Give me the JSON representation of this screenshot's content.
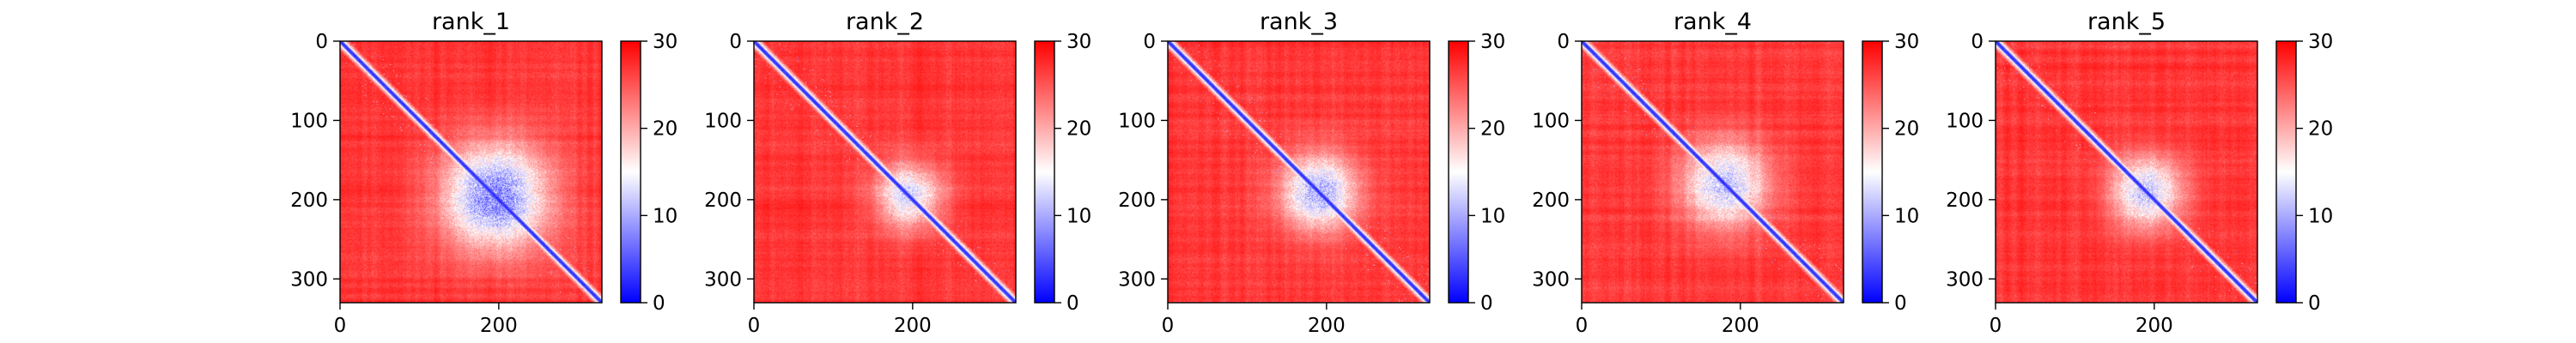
{
  "chart_data": {
    "type": "heatmap",
    "colormap": {
      "name": "bwr",
      "vmin": 0,
      "vmax": 30,
      "colors": [
        "#0000ff",
        "#ffffff",
        "#ff0000"
      ],
      "colorbar_ticks": [
        0,
        10,
        20,
        30
      ],
      "colorbar_tick_labels": [
        "0",
        "10",
        "20",
        "30"
      ]
    },
    "matrix_size": 330,
    "x_ticks": [
      0,
      200
    ],
    "x_tick_labels": [
      "0",
      "200"
    ],
    "y_ticks": [
      0,
      100,
      200,
      300
    ],
    "y_tick_labels": [
      "0",
      "100",
      "200",
      "300"
    ],
    "panels": [
      {
        "title": "rank_1",
        "contact_center": 195,
        "contact_width": 95,
        "contact_strength": 0.95,
        "seed": 11
      },
      {
        "title": "rank_2",
        "contact_center": 195,
        "contact_width": 60,
        "contact_strength": 0.7,
        "seed": 23
      },
      {
        "title": "rank_3",
        "contact_center": 190,
        "contact_width": 70,
        "contact_strength": 0.8,
        "seed": 37
      },
      {
        "title": "rank_4",
        "contact_center": 180,
        "contact_width": 80,
        "contact_strength": 0.75,
        "seed": 41
      },
      {
        "title": "rank_5",
        "contact_center": 190,
        "contact_width": 65,
        "contact_strength": 0.75,
        "seed": 59
      }
    ]
  }
}
